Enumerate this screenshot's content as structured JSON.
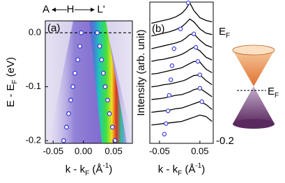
{
  "header": {
    "arrow_labels": [
      "A",
      "H",
      "L'"
    ]
  },
  "chart_data": [
    {
      "type": "scatter",
      "panel_label": "(a)",
      "xlabel_parts": [
        "k - k",
        "F",
        " (Å",
        "-1",
        ")"
      ],
      "ylabel_parts": [
        "E - E",
        "F",
        " (eV)"
      ],
      "hline": 0,
      "series": [
        {
          "color": "#3c3cdc",
          "x": [
            -0.0035,
            -0.0058,
            -0.0093,
            -0.014,
            -0.0174,
            -0.0209,
            -0.0244,
            -0.0279,
            -0.0326
          ],
          "values": [
            0,
            -0.025,
            -0.05,
            -0.075,
            -0.1,
            -0.125,
            -0.15,
            -0.175,
            -0.2
          ]
        },
        {
          "color": "#3c3cdc",
          "x": [
            0.023,
            0.027,
            0.03,
            0.033,
            0.036,
            0.04,
            0.043,
            0.048,
            0.052
          ],
          "values": [
            0,
            -0.025,
            -0.05,
            -0.075,
            -0.1,
            -0.125,
            -0.15,
            -0.175,
            -0.2
          ]
        }
      ],
      "xlim": [
        -0.063,
        0.081
      ],
      "xticks": [
        -0.05,
        {
          "value": 0,
          "label": "0.00"
        },
        0.05
      ],
      "ylim": [
        -0.205,
        0.022
      ],
      "yticks": [
        {
          "value": 0,
          "label": "0.0"
        },
        -0.1,
        -0.2
      ]
    },
    {
      "type": "line",
      "panel_label": "(b)",
      "xlabel_parts": [
        "k - k",
        "F",
        " (Å",
        "-1",
        ")"
      ],
      "ylabel": "Intensity (arb. unit)",
      "annotations": {
        "top_parts": [
          "E",
          "F"
        ],
        "bottom": "-0.2"
      },
      "x": [
        -0.07,
        -0.055,
        -0.04,
        -0.025,
        -0.01,
        0.005,
        0.015,
        0.025,
        0.035,
        0.05,
        0.065,
        0.08
      ],
      "series": [
        {
          "color": "#000000",
          "values": [
            8.5,
            8.6,
            8.7,
            8.8,
            8.95,
            9.2,
            9.5,
            9.95,
            9.4,
            8.9,
            8.7,
            8.6
          ]
        },
        {
          "color": "#000000",
          "values": [
            7.6,
            7.7,
            7.8,
            7.9,
            8.05,
            8.25,
            8.5,
            8.8,
            8.6,
            8.1,
            7.8,
            7.7
          ]
        },
        {
          "color": "#000000",
          "values": [
            6.7,
            6.8,
            6.9,
            7.0,
            7.1,
            7.25,
            7.45,
            7.7,
            7.75,
            7.3,
            6.95,
            6.8
          ]
        },
        {
          "color": "#000000",
          "values": [
            5.8,
            5.9,
            5.95,
            6.05,
            6.15,
            6.3,
            6.45,
            6.65,
            6.8,
            6.55,
            6.1,
            5.9
          ]
        },
        {
          "color": "#000000",
          "values": [
            4.9,
            4.95,
            5.05,
            5.15,
            5.25,
            5.35,
            5.5,
            5.65,
            5.8,
            5.75,
            5.25,
            5.0
          ]
        },
        {
          "color": "#000000",
          "values": [
            4.0,
            4.05,
            4.15,
            4.2,
            4.3,
            4.4,
            4.5,
            4.65,
            4.8,
            4.85,
            4.45,
            4.15
          ]
        },
        {
          "color": "#000000",
          "values": [
            3.1,
            3.15,
            3.2,
            3.3,
            3.4,
            3.45,
            3.55,
            3.65,
            3.8,
            3.9,
            3.6,
            3.3
          ]
        },
        {
          "color": "#000000",
          "values": [
            2.2,
            2.25,
            2.3,
            2.35,
            2.45,
            2.5,
            2.6,
            2.7,
            2.8,
            2.95,
            2.75,
            2.4
          ]
        },
        {
          "color": "#000000",
          "values": [
            1.3,
            1.35,
            1.4,
            1.45,
            1.5,
            1.55,
            1.65,
            1.75,
            1.85,
            2.0,
            1.9,
            1.55
          ]
        }
      ],
      "markers": [
        {
          "color": "#3c3cdc",
          "x": [
            0.021,
            0.002,
            -0.014,
            -0.019,
            -0.022,
            -0.026,
            -0.029,
            -0.034,
            -0.038
          ],
          "values": [
            9.95,
            8.1,
            6.7,
            5.5,
            4.5,
            3.4,
            2.3,
            1.4,
            0.65
          ]
        },
        {
          "color": "#3c3cdc",
          "x": [
            0.035,
            0.04,
            0.045,
            0.05,
            0.05,
            0.055
          ],
          "values": [
            7.75,
            6.8,
            5.8,
            4.85,
            3.9,
            2.95
          ]
        }
      ],
      "xlim": [
        -0.074,
        0.083
      ],
      "xticks": [
        -0.05,
        0.05
      ],
      "ylim": [
        0,
        10
      ]
    }
  ],
  "diagram": {
    "label_parts": [
      "E",
      "F"
    ]
  }
}
